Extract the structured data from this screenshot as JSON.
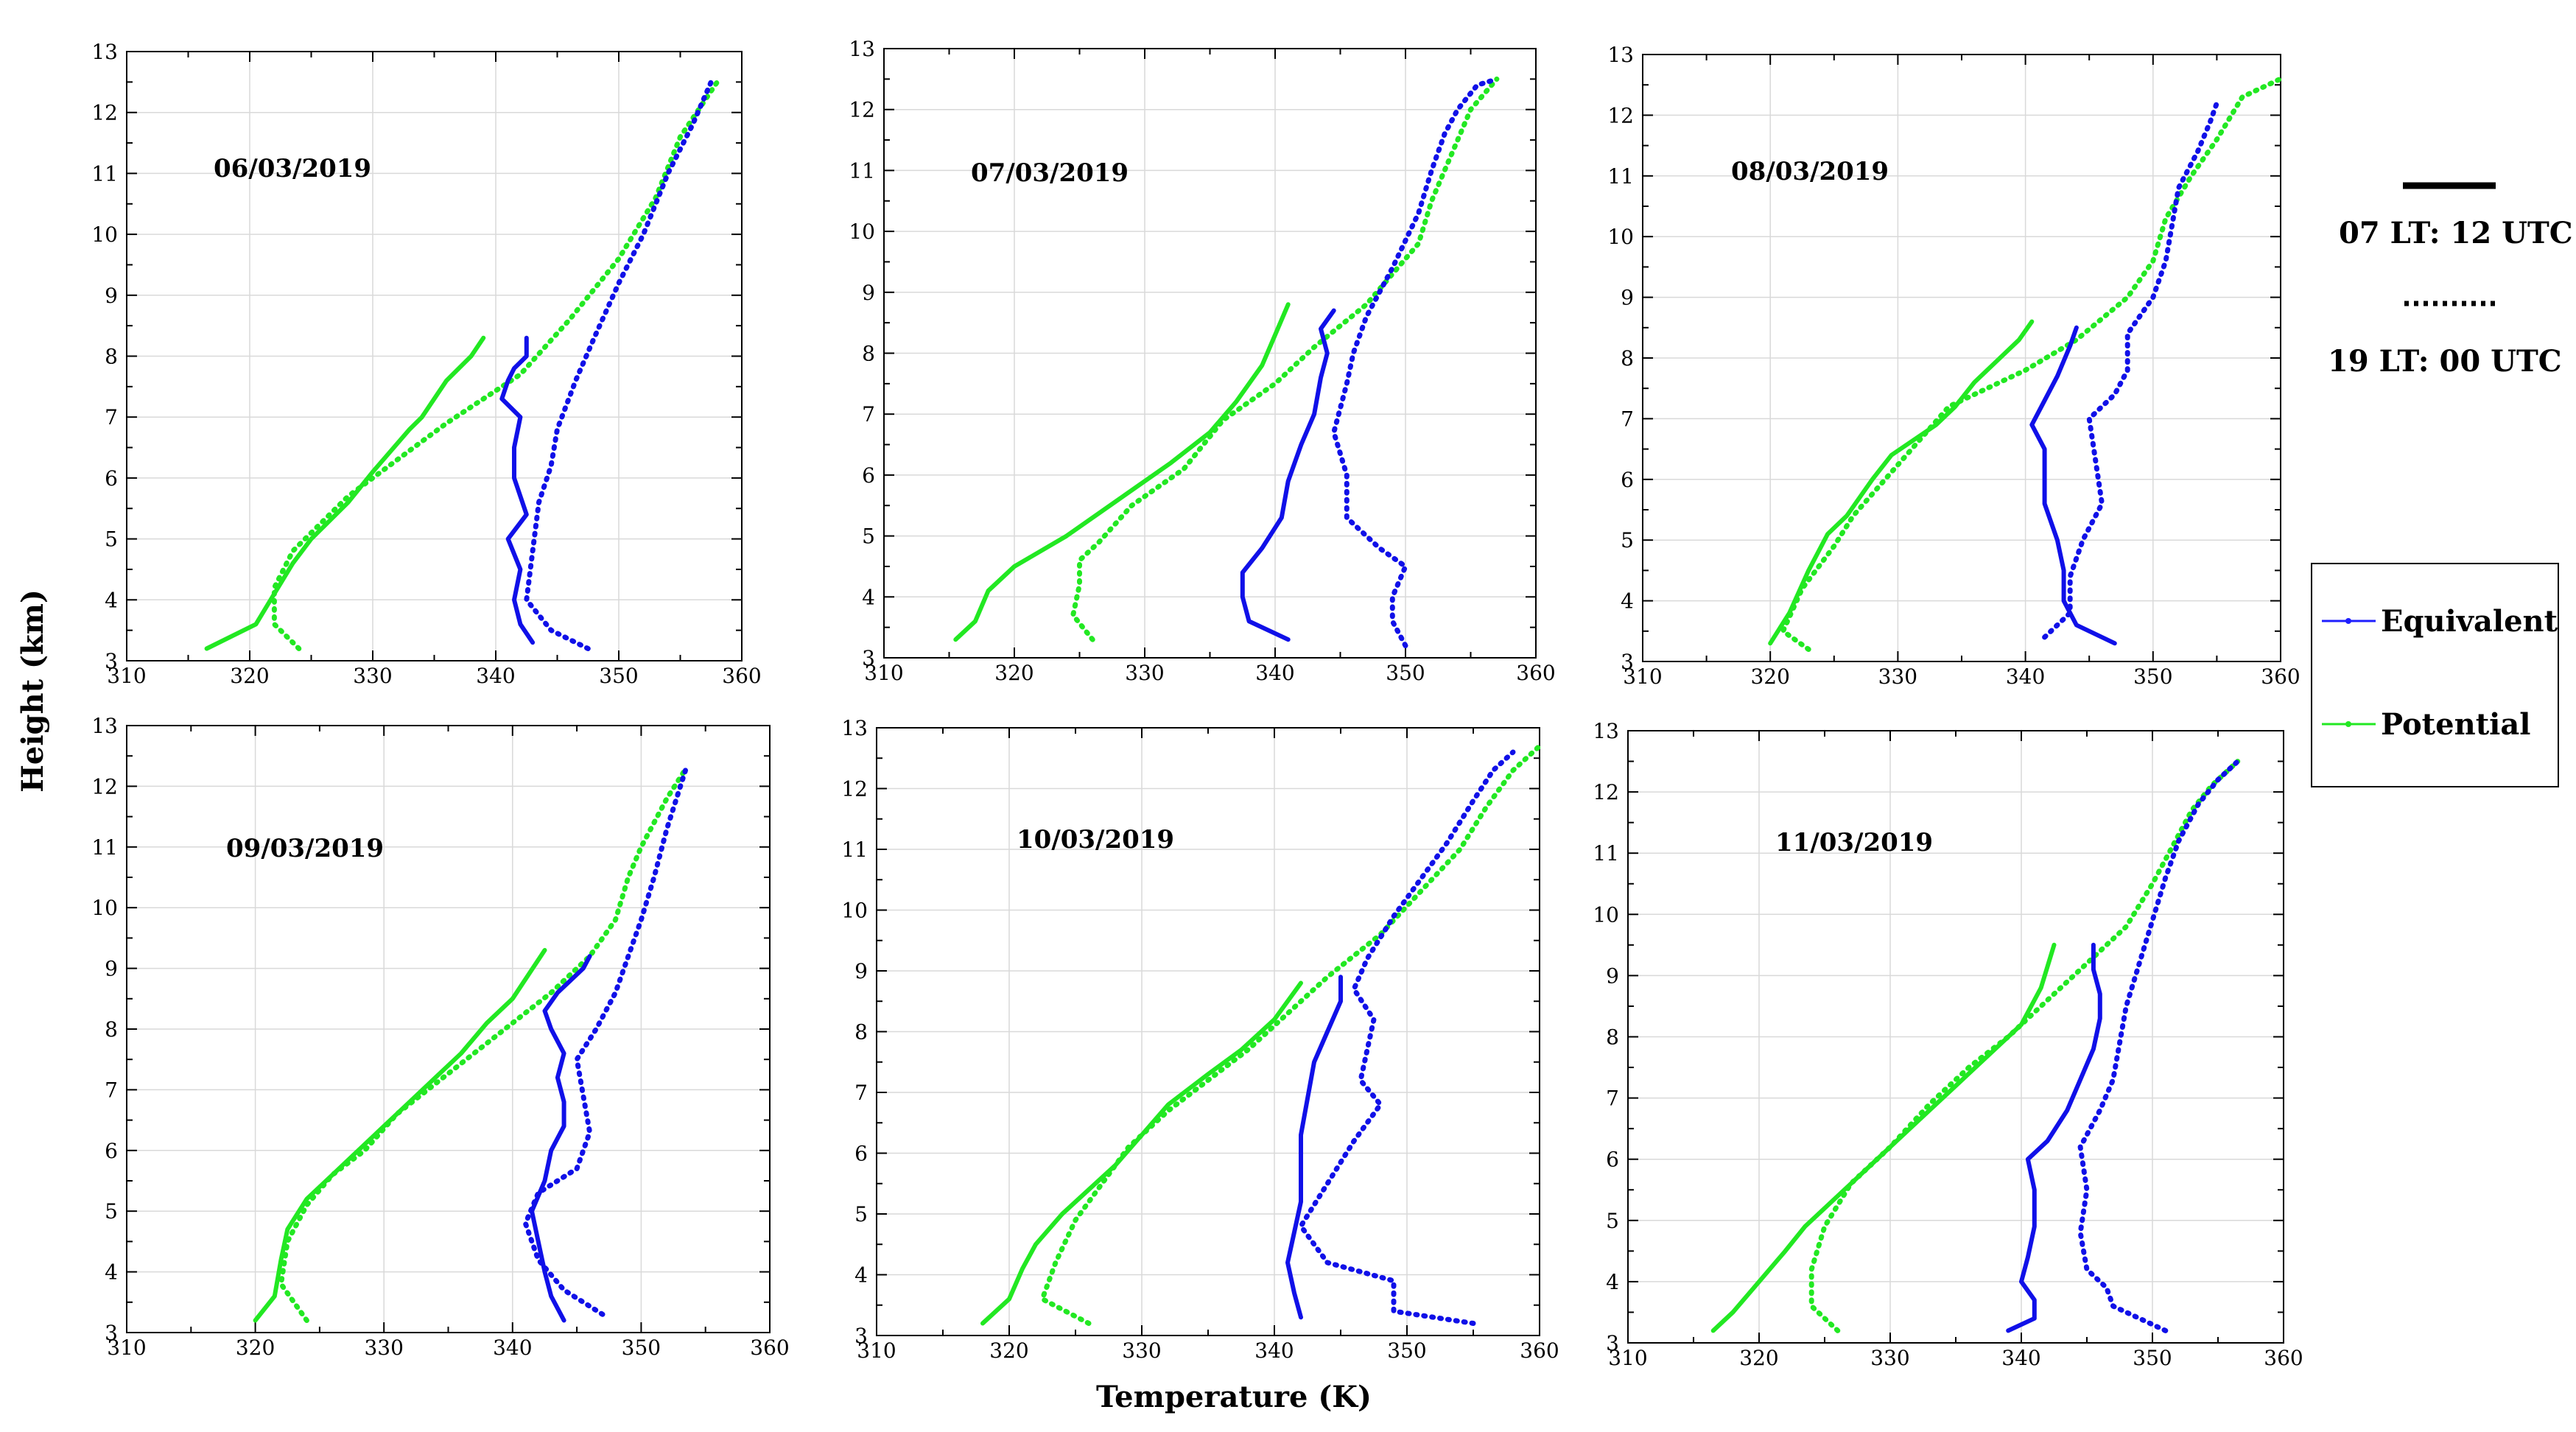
{
  "x_axis_title": "Temperature (K)",
  "y_axis_title": "Height (km)",
  "time_legend": {
    "solid_label": "07 LT: 12 UTC",
    "dotted_label": "19 LT:  00 UTC"
  },
  "series_legend": {
    "items": [
      {
        "label": "Equivalent",
        "color": "#1f1fff"
      },
      {
        "label": "Potential",
        "color": "#22e822"
      }
    ]
  },
  "colors": {
    "equivalent": "#1010e8",
    "potential": "#22e822",
    "grid": "#d9d9d9"
  },
  "chart_data": [
    {
      "type": "line",
      "date": "06/03/2019",
      "xlim": [
        310,
        360
      ],
      "ylim": [
        3,
        13
      ],
      "xticks": [
        310,
        320,
        330,
        340,
        350,
        360
      ],
      "yticks": [
        3,
        4,
        5,
        6,
        7,
        8,
        9,
        10,
        11,
        12,
        13
      ],
      "grid": true,
      "series": [
        {
          "name": "Potential",
          "time": "07 LT: 12 UTC",
          "x": [
            316.5,
            320.5,
            322,
            323.5,
            325,
            328,
            330,
            333,
            334,
            336,
            338,
            339
          ],
          "y": [
            3.2,
            3.6,
            4.1,
            4.6,
            5.0,
            5.6,
            6.1,
            6.8,
            7.0,
            7.6,
            8.0,
            8.3
          ]
        },
        {
          "name": "Potential",
          "time": "19 LT: 00 UTC",
          "x": [
            324,
            322,
            322,
            323.5,
            325,
            328,
            332,
            336,
            342,
            346,
            350,
            353,
            355,
            358
          ],
          "y": [
            3.2,
            3.6,
            4.2,
            4.8,
            5.1,
            5.7,
            6.3,
            6.9,
            7.7,
            8.6,
            9.6,
            10.6,
            11.6,
            12.5
          ]
        },
        {
          "name": "Equivalent",
          "time": "07 LT: 12 UTC",
          "x": [
            343,
            342,
            341.5,
            342,
            341,
            342.5,
            341.5,
            341.5,
            342,
            340.5,
            341,
            341.5,
            342,
            342.5,
            342.5
          ],
          "y": [
            3.3,
            3.6,
            4.0,
            4.5,
            5.0,
            5.4,
            6.0,
            6.5,
            7.0,
            7.3,
            7.6,
            7.8,
            7.9,
            8.0,
            8.3
          ]
        },
        {
          "name": "Equivalent",
          "time": "19 LT: 00 UTC",
          "x": [
            347.5,
            344.5,
            342.5,
            343,
            343.5,
            344.5,
            345,
            346.5,
            348,
            350,
            352,
            354,
            356,
            357.5
          ],
          "y": [
            3.2,
            3.5,
            4.0,
            4.8,
            5.6,
            6.2,
            6.8,
            7.6,
            8.3,
            9.2,
            10.0,
            11.0,
            11.8,
            12.5
          ]
        }
      ]
    },
    {
      "type": "line",
      "date": "07/03/2019",
      "xlim": [
        310,
        360
      ],
      "ylim": [
        3,
        13
      ],
      "xticks": [
        310,
        320,
        330,
        340,
        350,
        360
      ],
      "yticks": [
        3,
        4,
        5,
        6,
        7,
        8,
        9,
        10,
        11,
        12,
        13
      ],
      "grid": true,
      "series": [
        {
          "name": "Potential",
          "time": "07 LT: 12 UTC",
          "x": [
            315.5,
            317,
            318,
            320,
            324,
            328,
            332,
            335,
            337,
            339,
            340,
            341
          ],
          "y": [
            3.3,
            3.6,
            4.1,
            4.5,
            5.0,
            5.6,
            6.2,
            6.7,
            7.2,
            7.8,
            8.3,
            8.8
          ]
        },
        {
          "name": "Potential",
          "time": "19 LT: 00 UTC",
          "x": [
            326,
            324.5,
            325,
            325,
            326.5,
            329,
            333,
            336,
            340,
            343,
            347,
            351,
            352,
            353,
            355,
            357
          ],
          "y": [
            3.3,
            3.7,
            4.2,
            4.6,
            4.9,
            5.5,
            6.1,
            6.9,
            7.5,
            8.1,
            8.8,
            9.8,
            10.5,
            11.0,
            12.0,
            12.5
          ]
        },
        {
          "name": "Equivalent",
          "time": "07 LT: 12 UTC",
          "x": [
            341,
            338,
            337.5,
            337.5,
            339,
            340.5,
            341,
            342,
            343,
            343.5,
            344,
            343.5,
            344.5
          ],
          "y": [
            3.3,
            3.6,
            4.0,
            4.4,
            4.8,
            5.3,
            5.9,
            6.5,
            7.0,
            7.6,
            8.0,
            8.4,
            8.7
          ]
        },
        {
          "name": "Equivalent",
          "time": "19 LT: 00 UTC",
          "x": [
            350,
            349,
            349,
            350,
            348,
            345.5,
            345.5,
            344.5,
            345.5,
            346,
            347,
            349,
            351,
            352,
            353,
            354,
            355.5,
            357
          ],
          "y": [
            3.2,
            3.6,
            4.0,
            4.5,
            4.8,
            5.3,
            6.0,
            6.7,
            7.5,
            8.0,
            8.6,
            9.4,
            10.3,
            11.0,
            11.6,
            12.0,
            12.4,
            12.5
          ]
        }
      ]
    },
    {
      "type": "line",
      "date": "08/03/2019",
      "xlim": [
        310,
        360
      ],
      "ylim": [
        3,
        13
      ],
      "xticks": [
        310,
        320,
        330,
        340,
        350,
        360
      ],
      "yticks": [
        3,
        4,
        5,
        6,
        7,
        8,
        9,
        10,
        11,
        12,
        13
      ],
      "grid": true,
      "series": [
        {
          "name": "Potential",
          "time": "07 LT: 12 UTC",
          "x": [
            320,
            321.5,
            323,
            324.5,
            326,
            328,
            329.5,
            333,
            334.5,
            336,
            338,
            339.5,
            340.5
          ],
          "y": [
            3.3,
            3.8,
            4.5,
            5.1,
            5.4,
            6.0,
            6.4,
            6.9,
            7.2,
            7.6,
            8.0,
            8.3,
            8.6
          ]
        },
        {
          "name": "Potential",
          "time": "19 LT: 00 UTC",
          "x": [
            323,
            321,
            322.5,
            325,
            326.5,
            329,
            331.5,
            334,
            340,
            344,
            348,
            350,
            351,
            353,
            355,
            357,
            360
          ],
          "y": [
            3.2,
            3.5,
            4.2,
            4.9,
            5.4,
            6.0,
            6.6,
            7.2,
            7.8,
            8.3,
            9.0,
            9.6,
            10.3,
            11.0,
            11.6,
            12.3,
            12.6
          ]
        },
        {
          "name": "Equivalent",
          "time": "07 LT: 12 UTC",
          "x": [
            347,
            344,
            343,
            343,
            342.5,
            341.5,
            341.5,
            341.5,
            340.5,
            341.5,
            342.5,
            343.5,
            344
          ],
          "y": [
            3.3,
            3.6,
            4.0,
            4.5,
            5.0,
            5.6,
            6.2,
            6.5,
            6.9,
            7.3,
            7.7,
            8.2,
            8.5
          ]
        },
        {
          "name": "Equivalent",
          "time": "19 LT: 00 UTC",
          "x": [
            341.5,
            343.5,
            343.5,
            344.5,
            346,
            345.5,
            345,
            347,
            348,
            348,
            350,
            351,
            351.5,
            352,
            353.5,
            354.5,
            355
          ],
          "y": [
            3.4,
            3.8,
            4.4,
            5.0,
            5.6,
            6.3,
            7.0,
            7.4,
            7.8,
            8.4,
            9.0,
            9.6,
            10.2,
            10.8,
            11.4,
            11.9,
            12.2
          ]
        }
      ]
    },
    {
      "type": "line",
      "date": "09/03/2019",
      "xlim": [
        310,
        360
      ],
      "ylim": [
        3,
        13
      ],
      "xticks": [
        310,
        320,
        330,
        340,
        350,
        360
      ],
      "yticks": [
        3,
        4,
        5,
        6,
        7,
        8,
        9,
        10,
        11,
        12,
        13
      ],
      "grid": true,
      "series": [
        {
          "name": "Potential",
          "time": "07 LT: 12 UTC",
          "x": [
            320,
            321.5,
            322,
            322.5,
            324,
            326,
            328,
            330,
            332,
            334,
            336,
            338,
            340,
            342.5
          ],
          "y": [
            3.2,
            3.6,
            4.2,
            4.7,
            5.2,
            5.6,
            6.0,
            6.4,
            6.8,
            7.2,
            7.6,
            8.1,
            8.5,
            9.3
          ]
        },
        {
          "name": "Potential",
          "time": "19 LT: 00 UTC",
          "x": [
            324,
            322,
            322.5,
            324,
            326,
            328.5,
            331,
            334,
            337,
            340,
            343,
            346,
            348,
            349,
            350,
            352,
            353.5
          ],
          "y": [
            3.2,
            3.8,
            4.5,
            5.1,
            5.6,
            6.0,
            6.6,
            7.1,
            7.6,
            8.1,
            8.6,
            9.2,
            9.8,
            10.5,
            11.0,
            11.8,
            12.3
          ]
        },
        {
          "name": "Equivalent",
          "time": "07 LT: 12 UTC",
          "x": [
            344,
            343,
            342.5,
            342,
            341.5,
            342.5,
            343,
            344,
            344,
            343.5,
            344,
            343,
            342.5,
            343.5,
            344.5,
            345.5,
            346
          ],
          "y": [
            3.2,
            3.6,
            4.0,
            4.5,
            5.0,
            5.5,
            6.0,
            6.4,
            6.8,
            7.2,
            7.6,
            8.0,
            8.3,
            8.6,
            8.8,
            9.0,
            9.2
          ]
        },
        {
          "name": "Equivalent",
          "time": "19 LT: 00 UTC",
          "x": [
            347,
            344,
            342,
            341,
            342,
            345,
            346,
            345.5,
            345,
            346.5,
            348,
            349,
            350,
            351,
            352,
            353.5
          ],
          "y": [
            3.3,
            3.7,
            4.2,
            4.8,
            5.3,
            5.7,
            6.3,
            6.9,
            7.5,
            8.0,
            8.6,
            9.2,
            9.8,
            10.5,
            11.3,
            12.3
          ]
        }
      ]
    },
    {
      "type": "line",
      "date": "10/03/2019",
      "xlim": [
        310,
        360
      ],
      "ylim": [
        3,
        13
      ],
      "xticks": [
        310,
        320,
        330,
        340,
        350,
        360
      ],
      "yticks": [
        3,
        4,
        5,
        6,
        7,
        8,
        9,
        10,
        11,
        12,
        13
      ],
      "grid": true,
      "series": [
        {
          "name": "Potential",
          "time": "07 LT: 12 UTC",
          "x": [
            318,
            320,
            321,
            322,
            324,
            326,
            328,
            330,
            332,
            335,
            337.5,
            340,
            342
          ],
          "y": [
            3.2,
            3.6,
            4.1,
            4.5,
            5.0,
            5.4,
            5.8,
            6.3,
            6.8,
            7.3,
            7.7,
            8.2,
            8.8
          ]
        },
        {
          "name": "Potential",
          "time": "19 LT: 00 UTC",
          "x": [
            326,
            322.5,
            323.5,
            325,
            327,
            329,
            332,
            335,
            338,
            341,
            344,
            348,
            351,
            354,
            356,
            358,
            360
          ],
          "y": [
            3.2,
            3.6,
            4.2,
            4.9,
            5.5,
            6.1,
            6.7,
            7.2,
            7.7,
            8.3,
            8.9,
            9.6,
            10.3,
            11.0,
            11.7,
            12.3,
            12.7
          ]
        },
        {
          "name": "Equivalent",
          "time": "07 LT: 12 UTC",
          "x": [
            342,
            341.5,
            341,
            341.5,
            342,
            342,
            342,
            342.5,
            343,
            344,
            345,
            345
          ],
          "y": [
            3.3,
            3.7,
            4.2,
            4.7,
            5.2,
            5.7,
            6.3,
            6.9,
            7.5,
            8.0,
            8.5,
            8.9
          ]
        },
        {
          "name": "Equivalent",
          "time": "19 LT: 00 UTC",
          "x": [
            355,
            349,
            349,
            344,
            342,
            344,
            346,
            348,
            346.5,
            347,
            347.5,
            346,
            347,
            349,
            351,
            353,
            355,
            356.5,
            358
          ],
          "y": [
            3.2,
            3.4,
            3.9,
            4.2,
            4.8,
            5.5,
            6.2,
            6.8,
            7.2,
            7.7,
            8.2,
            8.7,
            9.2,
            9.9,
            10.5,
            11.1,
            11.8,
            12.3,
            12.6
          ]
        }
      ]
    },
    {
      "type": "line",
      "date": "11/03/2019",
      "xlim": [
        310,
        360
      ],
      "ylim": [
        3,
        13
      ],
      "xticks": [
        310,
        320,
        330,
        340,
        350,
        360
      ],
      "yticks": [
        3,
        4,
        5,
        6,
        7,
        8,
        9,
        10,
        11,
        12,
        13
      ],
      "grid": true,
      "series": [
        {
          "name": "Potential",
          "time": "07 LT: 12 UTC",
          "x": [
            316.5,
            318,
            320,
            322,
            323.5,
            326,
            329,
            332,
            335,
            337.5,
            340,
            341.5,
            342.5
          ],
          "y": [
            3.2,
            3.5,
            4.0,
            4.5,
            4.9,
            5.4,
            6.0,
            6.6,
            7.2,
            7.7,
            8.2,
            8.8,
            9.5
          ]
        },
        {
          "name": "Potential",
          "time": "19 LT: 00 UTC",
          "x": [
            326,
            324,
            324,
            325,
            327,
            330,
            333,
            336,
            339,
            342,
            345,
            348,
            350,
            351.5,
            353,
            354.5,
            356.5
          ],
          "y": [
            3.2,
            3.6,
            4.2,
            4.9,
            5.6,
            6.2,
            6.9,
            7.5,
            8.0,
            8.6,
            9.2,
            9.8,
            10.5,
            11.1,
            11.7,
            12.1,
            12.5
          ]
        },
        {
          "name": "Equivalent",
          "time": "07 LT: 12 UTC",
          "x": [
            339,
            341,
            341,
            340,
            340.5,
            341,
            341,
            340.5,
            342,
            343.5,
            344.5,
            345.5,
            346,
            346,
            345.5,
            345.5
          ],
          "y": [
            3.2,
            3.4,
            3.7,
            4.0,
            4.4,
            4.9,
            5.5,
            6.0,
            6.3,
            6.8,
            7.3,
            7.8,
            8.3,
            8.7,
            9.1,
            9.5
          ]
        },
        {
          "name": "Equivalent",
          "time": "19 LT: 00 UTC",
          "x": [
            351,
            347,
            346.5,
            345,
            344.5,
            345,
            344.5,
            346,
            347,
            347.5,
            348,
            349,
            350,
            351,
            352,
            353.5,
            355,
            356.5
          ],
          "y": [
            3.2,
            3.6,
            3.9,
            4.2,
            4.8,
            5.5,
            6.2,
            6.8,
            7.3,
            7.9,
            8.5,
            9.2,
            9.9,
            10.6,
            11.2,
            11.8,
            12.2,
            12.5
          ]
        }
      ]
    }
  ]
}
